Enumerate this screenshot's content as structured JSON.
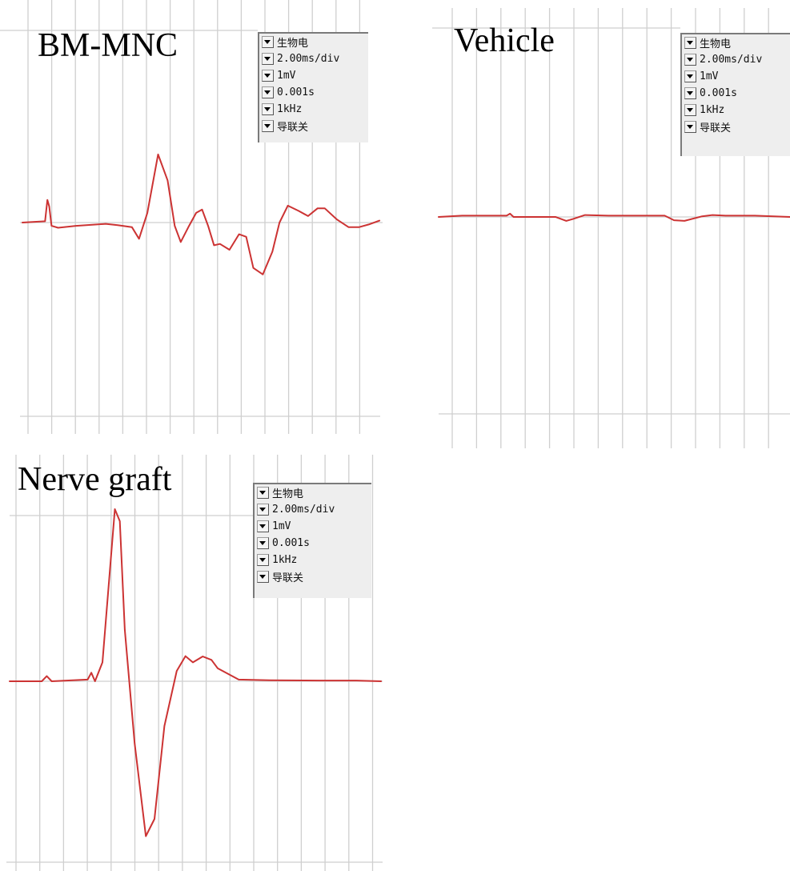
{
  "figure": {
    "panels": [
      {
        "id": "bm-mnc",
        "title": "BM-MNC",
        "settings": [
          "生物电",
          "2.00ms/div",
          "1mV",
          "0.001s",
          "1kHz",
          "导联关"
        ]
      },
      {
        "id": "vehicle",
        "title": "Vehicle",
        "settings": [
          "生物电",
          "2.00ms/div",
          "1mV",
          "0.001s",
          "1kHz",
          "导联关"
        ]
      },
      {
        "id": "nerve-graft",
        "title": "Nerve graft",
        "settings": [
          "生物电",
          "2.00ms/div",
          "1mV",
          "0.001s",
          "1kHz",
          "导联关"
        ]
      }
    ]
  },
  "chart_data": [
    {
      "type": "line",
      "title": "BM-MNC",
      "x_unit": "ms",
      "y_unit": "mV",
      "time_per_division_ms": 2.0,
      "xlim": [
        0,
        30
      ],
      "ylim": [
        -1.0,
        3.0
      ],
      "grid": true,
      "line_color": "#cc3333",
      "series": [
        {
          "x": [
            0,
            1.9,
            2.1,
            2.25,
            2.45,
            3.0,
            4.5,
            7.0,
            8.0,
            9.2,
            9.8,
            10.5,
            11.4,
            12.2,
            12.8,
            13.3,
            14.0,
            14.6,
            15.1,
            15.6,
            16.1,
            16.6,
            17.4,
            18.2,
            18.8,
            19.4,
            20.2,
            21.0,
            21.6,
            22.3,
            23.2,
            24.0,
            24.8,
            25.4,
            26.4,
            27.4,
            28.3,
            29.1,
            30.0
          ],
          "y": [
            0.0,
            0.02,
            0.35,
            0.25,
            -0.05,
            -0.08,
            -0.05,
            -0.02,
            -0.04,
            -0.07,
            -0.25,
            0.15,
            1.05,
            0.65,
            -0.05,
            -0.3,
            -0.05,
            0.15,
            0.2,
            -0.05,
            -0.35,
            -0.33,
            -0.42,
            -0.18,
            -0.22,
            -0.7,
            -0.8,
            -0.45,
            0.0,
            0.26,
            0.18,
            0.1,
            0.22,
            0.22,
            0.05,
            -0.07,
            -0.07,
            -0.03,
            0.03
          ]
        }
      ]
    },
    {
      "type": "line",
      "title": "Vehicle",
      "x_unit": "ms",
      "y_unit": "mV",
      "time_per_division_ms": 2.0,
      "xlim": [
        0,
        30
      ],
      "ylim": [
        -1.0,
        3.0
      ],
      "grid": true,
      "line_color": "#cc3333",
      "series": [
        {
          "x": [
            0,
            2.0,
            5.8,
            6.1,
            6.4,
            10.0,
            10.9,
            11.5,
            12.5,
            14.5,
            16.5,
            18.0,
            19.3,
            20.1,
            21.0,
            22.5,
            23.4,
            24.5,
            27.0,
            30.0
          ],
          "y": [
            0.0,
            0.02,
            0.02,
            0.05,
            0.0,
            0.0,
            -0.06,
            -0.03,
            0.03,
            0.02,
            0.02,
            0.02,
            0.02,
            -0.05,
            -0.06,
            0.01,
            0.03,
            0.02,
            0.02,
            0.0
          ]
        }
      ]
    },
    {
      "type": "line",
      "title": "Nerve graft",
      "x_unit": "ms",
      "y_unit": "mV",
      "time_per_division_ms": 2.0,
      "xlim": [
        0,
        30
      ],
      "ylim": [
        -5.0,
        5.5
      ],
      "grid": true,
      "line_color": "#cc3333",
      "series": [
        {
          "x": [
            0,
            2.6,
            3.0,
            3.4,
            6.3,
            6.6,
            6.9,
            7.5,
            8.5,
            8.9,
            9.3,
            10.1,
            11.0,
            11.7,
            12.5,
            13.5,
            14.2,
            14.8,
            15.6,
            16.3,
            16.8,
            18.5,
            21.0,
            25.0,
            28.0,
            30.0
          ],
          "y": [
            0.0,
            0.0,
            0.15,
            0.0,
            0.05,
            0.25,
            0.0,
            0.55,
            5.0,
            4.65,
            1.5,
            -1.8,
            -4.5,
            -4.0,
            -1.3,
            0.3,
            0.73,
            0.55,
            0.72,
            0.62,
            0.38,
            0.05,
            0.03,
            0.02,
            0.02,
            0.0
          ]
        }
      ]
    }
  ]
}
